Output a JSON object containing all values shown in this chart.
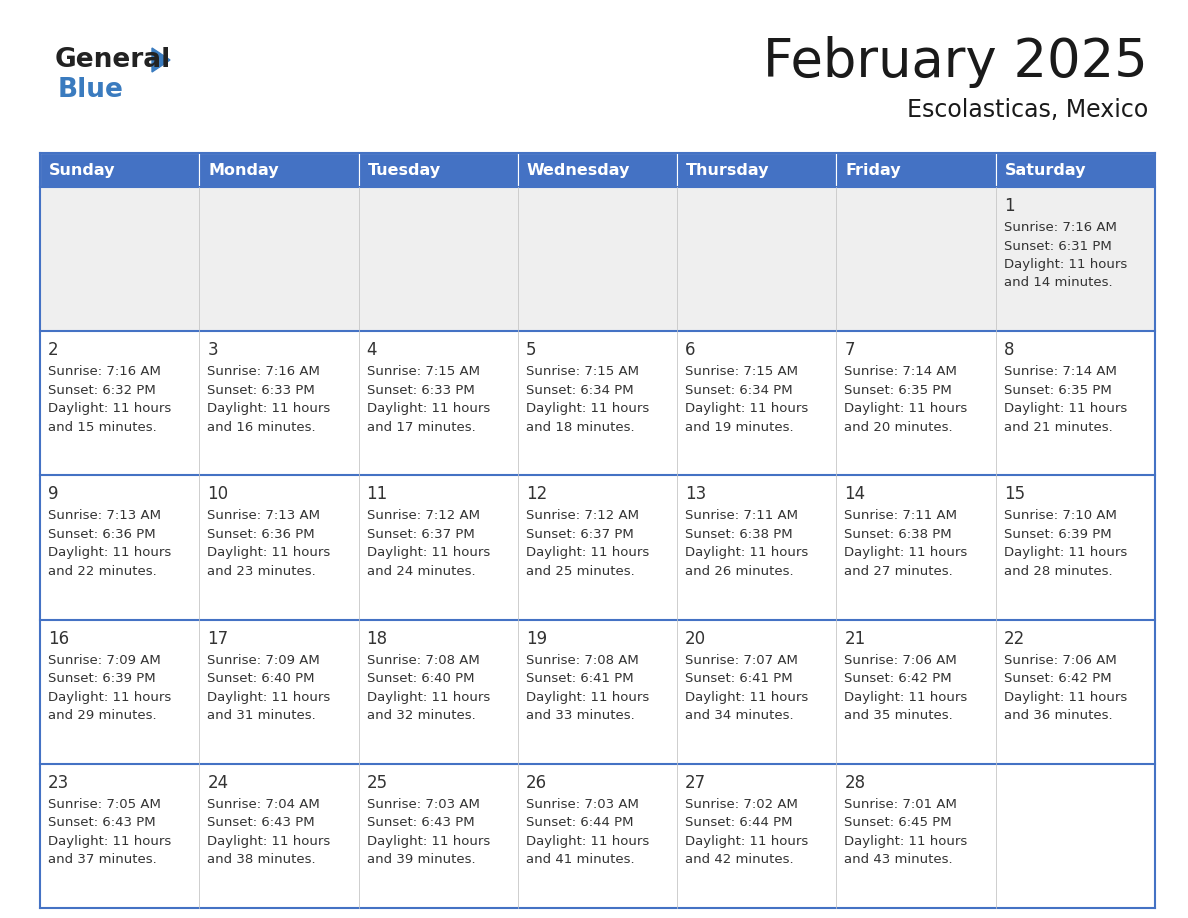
{
  "title": "February 2025",
  "subtitle": "Escolasticas, Mexico",
  "header_color": "#4472C4",
  "header_text_color": "#FFFFFF",
  "cell_bg_color": "#FFFFFF",
  "alt_cell_bg_color": "#EFEFEF",
  "border_color": "#4472C4",
  "title_color": "#1a1a1a",
  "text_color": "#333333",
  "days_of_week": [
    "Sunday",
    "Monday",
    "Tuesday",
    "Wednesday",
    "Thursday",
    "Friday",
    "Saturday"
  ],
  "weeks": [
    [
      {
        "day": null,
        "sunrise": null,
        "sunset": null,
        "daylight_hours": null,
        "daylight_minutes": null
      },
      {
        "day": null,
        "sunrise": null,
        "sunset": null,
        "daylight_hours": null,
        "daylight_minutes": null
      },
      {
        "day": null,
        "sunrise": null,
        "sunset": null,
        "daylight_hours": null,
        "daylight_minutes": null
      },
      {
        "day": null,
        "sunrise": null,
        "sunset": null,
        "daylight_hours": null,
        "daylight_minutes": null
      },
      {
        "day": null,
        "sunrise": null,
        "sunset": null,
        "daylight_hours": null,
        "daylight_minutes": null
      },
      {
        "day": null,
        "sunrise": null,
        "sunset": null,
        "daylight_hours": null,
        "daylight_minutes": null
      },
      {
        "day": 1,
        "sunrise": "7:16 AM",
        "sunset": "6:31 PM",
        "daylight_hours": 11,
        "daylight_minutes": 14
      }
    ],
    [
      {
        "day": 2,
        "sunrise": "7:16 AM",
        "sunset": "6:32 PM",
        "daylight_hours": 11,
        "daylight_minutes": 15
      },
      {
        "day": 3,
        "sunrise": "7:16 AM",
        "sunset": "6:33 PM",
        "daylight_hours": 11,
        "daylight_minutes": 16
      },
      {
        "day": 4,
        "sunrise": "7:15 AM",
        "sunset": "6:33 PM",
        "daylight_hours": 11,
        "daylight_minutes": 17
      },
      {
        "day": 5,
        "sunrise": "7:15 AM",
        "sunset": "6:34 PM",
        "daylight_hours": 11,
        "daylight_minutes": 18
      },
      {
        "day": 6,
        "sunrise": "7:15 AM",
        "sunset": "6:34 PM",
        "daylight_hours": 11,
        "daylight_minutes": 19
      },
      {
        "day": 7,
        "sunrise": "7:14 AM",
        "sunset": "6:35 PM",
        "daylight_hours": 11,
        "daylight_minutes": 20
      },
      {
        "day": 8,
        "sunrise": "7:14 AM",
        "sunset": "6:35 PM",
        "daylight_hours": 11,
        "daylight_minutes": 21
      }
    ],
    [
      {
        "day": 9,
        "sunrise": "7:13 AM",
        "sunset": "6:36 PM",
        "daylight_hours": 11,
        "daylight_minutes": 22
      },
      {
        "day": 10,
        "sunrise": "7:13 AM",
        "sunset": "6:36 PM",
        "daylight_hours": 11,
        "daylight_minutes": 23
      },
      {
        "day": 11,
        "sunrise": "7:12 AM",
        "sunset": "6:37 PM",
        "daylight_hours": 11,
        "daylight_minutes": 24
      },
      {
        "day": 12,
        "sunrise": "7:12 AM",
        "sunset": "6:37 PM",
        "daylight_hours": 11,
        "daylight_minutes": 25
      },
      {
        "day": 13,
        "sunrise": "7:11 AM",
        "sunset": "6:38 PM",
        "daylight_hours": 11,
        "daylight_minutes": 26
      },
      {
        "day": 14,
        "sunrise": "7:11 AM",
        "sunset": "6:38 PM",
        "daylight_hours": 11,
        "daylight_minutes": 27
      },
      {
        "day": 15,
        "sunrise": "7:10 AM",
        "sunset": "6:39 PM",
        "daylight_hours": 11,
        "daylight_minutes": 28
      }
    ],
    [
      {
        "day": 16,
        "sunrise": "7:09 AM",
        "sunset": "6:39 PM",
        "daylight_hours": 11,
        "daylight_minutes": 29
      },
      {
        "day": 17,
        "sunrise": "7:09 AM",
        "sunset": "6:40 PM",
        "daylight_hours": 11,
        "daylight_minutes": 31
      },
      {
        "day": 18,
        "sunrise": "7:08 AM",
        "sunset": "6:40 PM",
        "daylight_hours": 11,
        "daylight_minutes": 32
      },
      {
        "day": 19,
        "sunrise": "7:08 AM",
        "sunset": "6:41 PM",
        "daylight_hours": 11,
        "daylight_minutes": 33
      },
      {
        "day": 20,
        "sunrise": "7:07 AM",
        "sunset": "6:41 PM",
        "daylight_hours": 11,
        "daylight_minutes": 34
      },
      {
        "day": 21,
        "sunrise": "7:06 AM",
        "sunset": "6:42 PM",
        "daylight_hours": 11,
        "daylight_minutes": 35
      },
      {
        "day": 22,
        "sunrise": "7:06 AM",
        "sunset": "6:42 PM",
        "daylight_hours": 11,
        "daylight_minutes": 36
      }
    ],
    [
      {
        "day": 23,
        "sunrise": "7:05 AM",
        "sunset": "6:43 PM",
        "daylight_hours": 11,
        "daylight_minutes": 37
      },
      {
        "day": 24,
        "sunrise": "7:04 AM",
        "sunset": "6:43 PM",
        "daylight_hours": 11,
        "daylight_minutes": 38
      },
      {
        "day": 25,
        "sunrise": "7:03 AM",
        "sunset": "6:43 PM",
        "daylight_hours": 11,
        "daylight_minutes": 39
      },
      {
        "day": 26,
        "sunrise": "7:03 AM",
        "sunset": "6:44 PM",
        "daylight_hours": 11,
        "daylight_minutes": 41
      },
      {
        "day": 27,
        "sunrise": "7:02 AM",
        "sunset": "6:44 PM",
        "daylight_hours": 11,
        "daylight_minutes": 42
      },
      {
        "day": 28,
        "sunrise": "7:01 AM",
        "sunset": "6:45 PM",
        "daylight_hours": 11,
        "daylight_minutes": 43
      },
      {
        "day": null,
        "sunrise": null,
        "sunset": null,
        "daylight_hours": null,
        "daylight_minutes": null
      }
    ]
  ],
  "logo_general_color": "#222222",
  "logo_blue_color": "#3a7bbf"
}
